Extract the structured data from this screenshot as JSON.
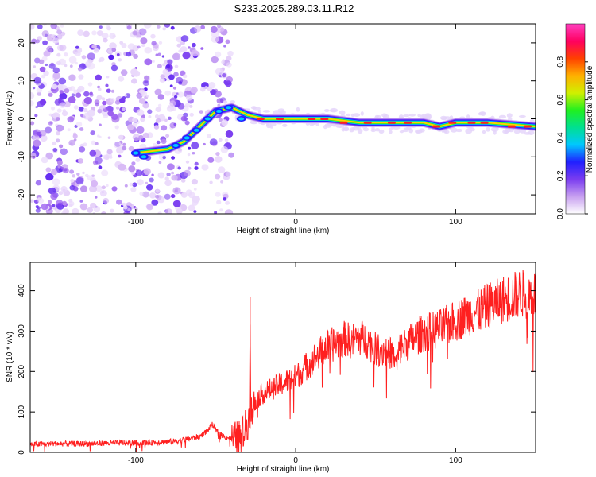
{
  "title": "S233.2025.289.03.11.R12",
  "spectrogram": {
    "type": "heatmap",
    "xlabel": "Height of straight line (km)",
    "ylabel": "Frequency (Hz)",
    "xlim": [
      -166,
      150
    ],
    "ylim": [
      -25,
      25
    ],
    "xticks": [
      -100,
      0,
      100
    ],
    "yticks": [
      -20,
      -10,
      0,
      10,
      20
    ],
    "noise_region_km": [
      -166,
      -40
    ],
    "signal_track": [
      {
        "x": -100,
        "y": -9
      },
      {
        "x": -80,
        "y": -8
      },
      {
        "x": -70,
        "y": -6
      },
      {
        "x": -60,
        "y": -2
      },
      {
        "x": -50,
        "y": 2
      },
      {
        "x": -40,
        "y": 3
      },
      {
        "x": -30,
        "y": 1
      },
      {
        "x": -20,
        "y": 0
      },
      {
        "x": 0,
        "y": 0
      },
      {
        "x": 20,
        "y": 0
      },
      {
        "x": 40,
        "y": -1
      },
      {
        "x": 60,
        "y": -1
      },
      {
        "x": 80,
        "y": -1
      },
      {
        "x": 90,
        "y": -2
      },
      {
        "x": 100,
        "y": -1
      },
      {
        "x": 120,
        "y": -1
      },
      {
        "x": 150,
        "y": -2
      }
    ]
  },
  "colorbar": {
    "label": "Normalized spectral amplitude",
    "range": [
      0,
      1
    ],
    "ticks": [
      "0.0",
      "0.2",
      "0.4",
      "0.6",
      "0.8"
    ],
    "colors": [
      "#ffffff",
      "#c8a0f0",
      "#7a3cf0",
      "#2020ff",
      "#00c8ff",
      "#00e090",
      "#20f020",
      "#d0f000",
      "#ffb000",
      "#ff4000",
      "#ff0060",
      "#ff40c0"
    ]
  },
  "chart_data": {
    "type": "line",
    "title": "S233.2025.289.03.11.R12",
    "xlabel": "Height of straight line (km)",
    "ylabel": "SNR (10 * v/v)",
    "xlim": [
      -166,
      150
    ],
    "ylim": [
      0,
      470
    ],
    "xticks": [
      -100,
      0,
      100
    ],
    "yticks": [
      0,
      100,
      200,
      300,
      400
    ],
    "color": "#ff2020",
    "series": [
      {
        "name": "SNR",
        "x": [
          -166,
          -150,
          -130,
          -110,
          -90,
          -75,
          -60,
          -55,
          -52,
          -50,
          -45,
          -40,
          -35,
          -32,
          -29,
          -28.5,
          -28,
          -25,
          -20,
          -15,
          -10,
          -5,
          0,
          5,
          10,
          15,
          20,
          25,
          30,
          35,
          40,
          45,
          50,
          55,
          60,
          63,
          65,
          70,
          75,
          80,
          85,
          90,
          95,
          100,
          105,
          110,
          115,
          120,
          125,
          130,
          135,
          140,
          145,
          150
        ],
        "y": [
          20,
          22,
          22,
          24,
          25,
          28,
          40,
          55,
          70,
          55,
          40,
          35,
          40,
          60,
          90,
          385,
          100,
          130,
          150,
          160,
          170,
          180,
          190,
          210,
          230,
          250,
          265,
          275,
          285,
          280,
          290,
          280,
          260,
          255,
          250,
          220,
          260,
          275,
          290,
          300,
          305,
          310,
          320,
          330,
          340,
          350,
          355,
          370,
          375,
          385,
          390,
          400,
          395,
          400
        ]
      }
    ]
  }
}
